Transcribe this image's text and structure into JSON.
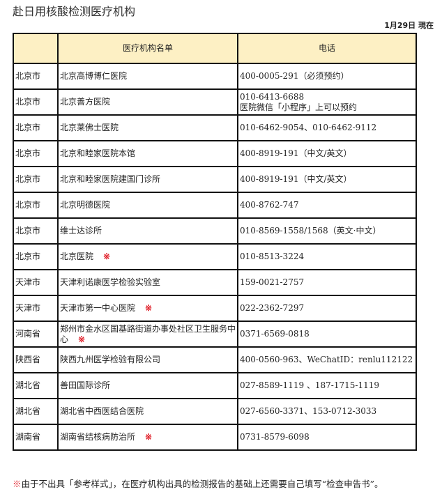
{
  "title": "赴日用核酸检测医疗机构",
  "date": "1月29日 現在",
  "headers": [
    "",
    "医疗机构名单",
    "电话"
  ],
  "mark": "※",
  "rows": [
    {
      "region": "北京市",
      "name": "北京高博博仁医院",
      "phone": "400-0005-291（必须预约）",
      "phone2": "",
      "marked": false
    },
    {
      "region": "北京市",
      "name": "北京善方医院",
      "phone": "010-6413-6688",
      "phone2": "医院微信「小程序」上可以预约",
      "marked": false
    },
    {
      "region": "北京市",
      "name": "北京莱佛士医院",
      "phone": "010-6462-9054、010-6462-9112",
      "phone2": "",
      "marked": false
    },
    {
      "region": "北京市",
      "name": "北京和睦家医院本馆",
      "phone": "400-8919-191（中文/英文）",
      "phone2": "",
      "marked": false
    },
    {
      "region": "北京市",
      "name": "北京和睦家医院建国门诊所",
      "phone": "400-8919-191（中文/英文）",
      "phone2": "",
      "marked": false
    },
    {
      "region": "北京市",
      "name": "北京明德医院",
      "phone": "400-8762-747",
      "phone2": "",
      "marked": false
    },
    {
      "region": "北京市",
      "name": "维士达诊所",
      "phone": "010-8569-1558/1568（英文·中文）",
      "phone2": "",
      "marked": false
    },
    {
      "region": "北京市",
      "name": "北京医院",
      "phone": "010-8513-3224",
      "phone2": "",
      "marked": true
    },
    {
      "region": "天津市",
      "name": "天津利诺康医学检验实验室",
      "phone": "159-0021-2757",
      "phone2": "",
      "marked": false
    },
    {
      "region": "天津市",
      "name": "天津市第一中心医院",
      "phone": "022-2362-7297",
      "phone2": "",
      "marked": true
    },
    {
      "region": "河南省",
      "name": "郑州市金水区国基路街道办事处社区卫生服务中心",
      "phone": "0371-6569-0818",
      "phone2": "",
      "marked": true
    },
    {
      "region": "陕西省",
      "name": "陕西九州医学检验有限公司",
      "phone": "400-0560-963、WeChatID：renlu112122",
      "phone2": "",
      "marked": false
    },
    {
      "region": "湖北省",
      "name": "善田国际诊所",
      "phone": "027-8589-1119 、187-1715-1119",
      "phone2": "",
      "marked": false
    },
    {
      "region": "湖北省",
      "name": "湖北省中西医结合医院",
      "phone": "027-6560-3371、153-0712-3033",
      "phone2": "",
      "marked": false
    },
    {
      "region": "湖南省",
      "name": "湖南省结核病防治所",
      "phone": "0731-8579-6098",
      "phone2": "",
      "marked": true
    }
  ],
  "note": "由于不出具「参考样式」，在医疗机构出具的检测报告的基础上还需要自己填写“检查申告书”。"
}
